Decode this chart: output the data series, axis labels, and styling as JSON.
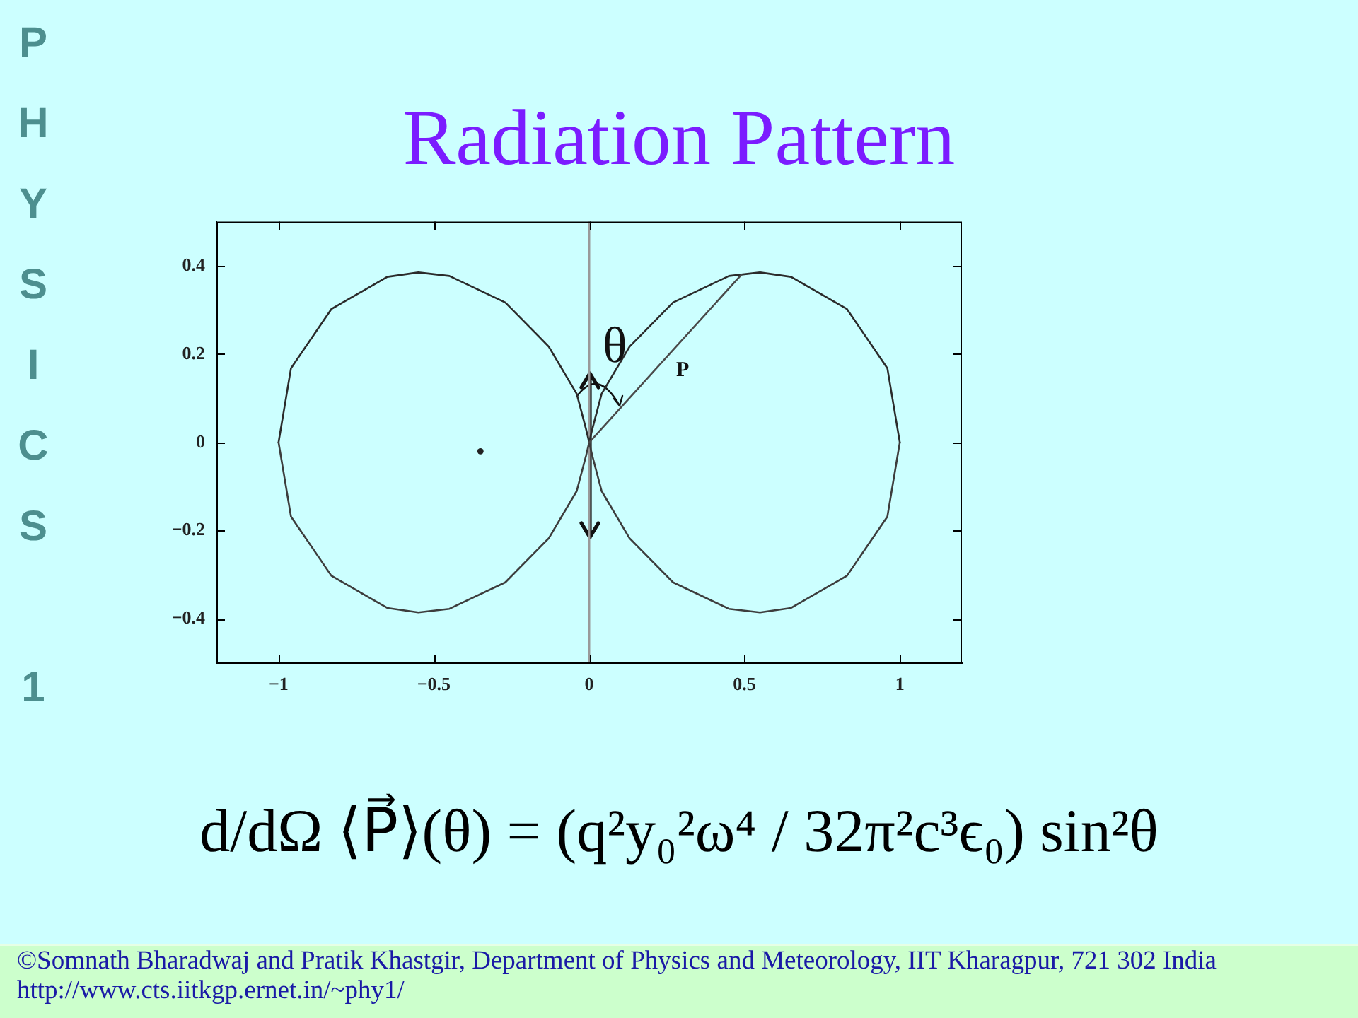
{
  "chart_data": {
    "type": "line",
    "title": "Radiation Pattern",
    "xlim": [
      -1.2,
      1.2
    ],
    "ylim": [
      -0.5,
      0.5
    ],
    "xticks": [
      {
        "value": -1,
        "label": "−1"
      },
      {
        "value": -0.5,
        "label": "−0.5"
      },
      0,
      0.5,
      1
    ],
    "yticks": [
      {
        "value": -0.4,
        "label": "−0.4"
      },
      {
        "value": -0.2,
        "label": "−0.2"
      },
      0,
      0.2,
      0.4
    ],
    "grid": false,
    "legend": false,
    "marker": "none",
    "series": [
      {
        "color": "#2b2b2b",
        "x": [
          -1,
          -0.96,
          -0.83,
          -0.65,
          -0.55,
          -0.45,
          -0.27,
          -0.13,
          -0.04,
          -0.01,
          0,
          0.01,
          0.04,
          0.13,
          0.27,
          0.45,
          0.55,
          0.65,
          0.83,
          0.96,
          1
        ],
        "values": [
          0,
          0.168,
          0.302,
          0.375,
          0.385,
          0.377,
          0.317,
          0.217,
          0.11,
          0.03,
          0,
          0.03,
          0.11,
          0.217,
          0.317,
          0.377,
          0.385,
          0.375,
          0.302,
          0.168,
          0
        ]
      },
      {
        "color": "#3d3d3d",
        "x": [
          -1,
          -0.96,
          -0.83,
          -0.65,
          -0.55,
          -0.45,
          -0.27,
          -0.13,
          -0.04,
          -0.01,
          0,
          0.01,
          0.04,
          0.13,
          0.27,
          0.45,
          0.55,
          0.65,
          0.83,
          0.96,
          1
        ],
        "values": [
          0,
          -0.168,
          -0.302,
          -0.375,
          -0.385,
          -0.377,
          -0.317,
          -0.217,
          -0.11,
          -0.03,
          0,
          -0.03,
          -0.11,
          -0.217,
          -0.317,
          -0.377,
          -0.385,
          -0.375,
          -0.302,
          -0.168,
          0
        ]
      },
      {
        "color": "#4a4a4a",
        "x": [
          0,
          0.49
        ],
        "values": [
          0,
          0.38
        ]
      },
      {
        "type": "scatter",
        "marker": "circle",
        "color": "#222222",
        "x": [
          -0.35
        ],
        "values": [
          -0.02
        ]
      }
    ],
    "ref_lines": [
      {
        "axis": "x",
        "value": 0,
        "color": "#999999"
      }
    ],
    "annotations": [
      "θ",
      "P",
      "PHYSICS 1",
      "d/dΩ ⟨P⃗⟩(θ) = (q²y₀²ω⁴ / 32π²c³ϵ₀) sin²θ",
      "©Somnath Bharadwaj and Pratik Khastgir, Department of Physics and Meteorology, IIT Kharagpur, 721 302 India",
      "http://www.cts.iitkgp.ernet.in/~phy1/"
    ]
  }
}
